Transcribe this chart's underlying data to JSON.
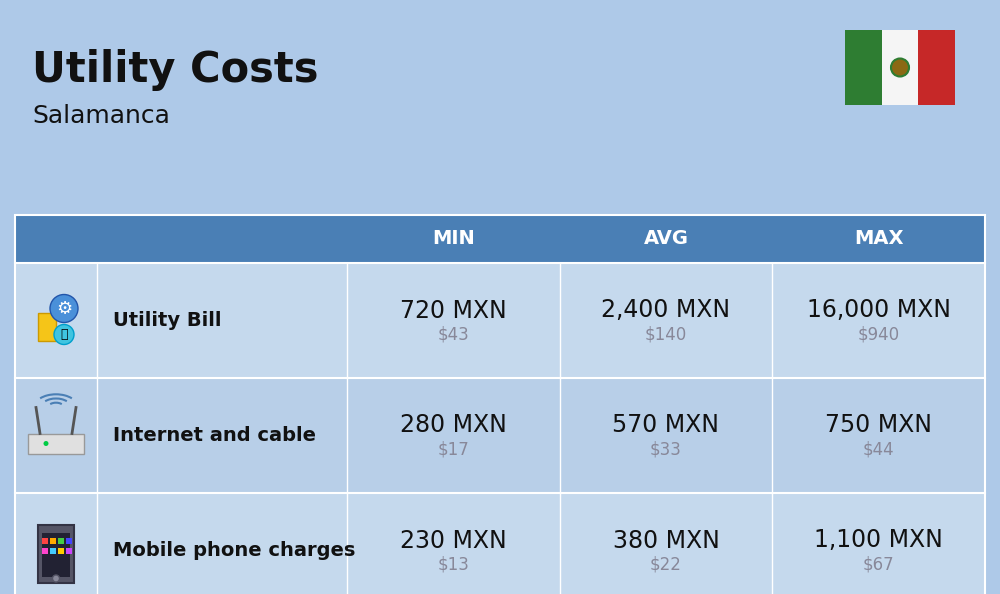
{
  "title": "Utility Costs",
  "subtitle": "Salamanca",
  "background_color": "#aec9e8",
  "header_bg_color": "#4a7fb5",
  "header_text_color": "#ffffff",
  "row_bg_color_1": "#c5d9ed",
  "row_bg_color_2": "#b8cfe8",
  "separator_color": "#ffffff",
  "col_header": [
    "MIN",
    "AVG",
    "MAX"
  ],
  "rows": [
    {
      "label": "Utility Bill",
      "min_mxn": "720 MXN",
      "min_usd": "$43",
      "avg_mxn": "2,400 MXN",
      "avg_usd": "$140",
      "max_mxn": "16,000 MXN",
      "max_usd": "$940",
      "icon": "utility"
    },
    {
      "label": "Internet and cable",
      "min_mxn": "280 MXN",
      "min_usd": "$17",
      "avg_mxn": "570 MXN",
      "avg_usd": "$33",
      "max_mxn": "750 MXN",
      "max_usd": "$44",
      "icon": "internet"
    },
    {
      "label": "Mobile phone charges",
      "min_mxn": "230 MXN",
      "min_usd": "$13",
      "avg_mxn": "380 MXN",
      "avg_usd": "$22",
      "max_mxn": "1,100 MXN",
      "max_usd": "$67",
      "icon": "mobile"
    }
  ],
  "title_fontsize": 30,
  "subtitle_fontsize": 18,
  "label_font_size": 14,
  "header_font_size": 14,
  "data_font_size": 17,
  "usd_font_size": 12,
  "usd_color": "#888899",
  "text_color": "#111111"
}
